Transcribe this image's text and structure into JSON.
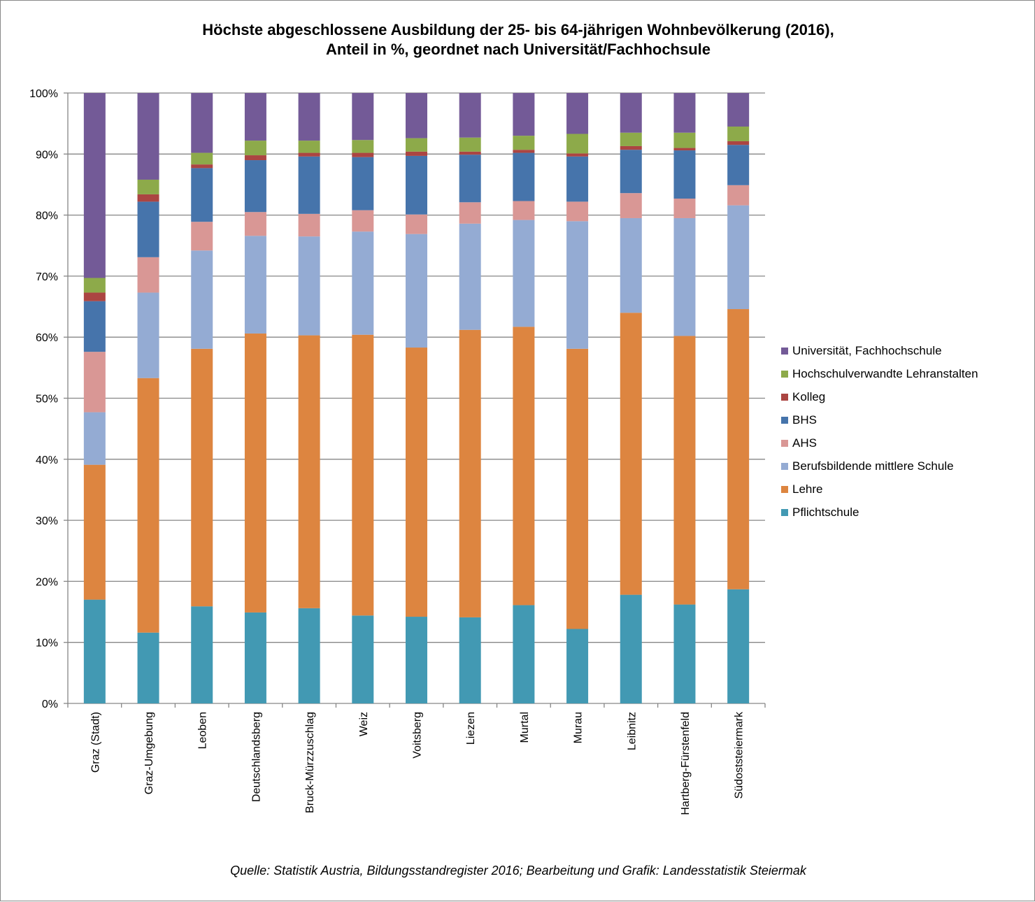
{
  "chart_data": {
    "type": "bar",
    "stacked": true,
    "title_lines": [
      "Höchste abgeschlossene Ausbildung der 25- bis 64-jährigen Wohnbevölkerung (2016),",
      "Anteil in %,  geordnet nach Universität/Fachhochsule"
    ],
    "categories": [
      "Graz (Stadt)",
      "Graz-Umgebung",
      "Leoben",
      "Deutschlandsberg",
      "Bruck-Mürzzuschlag",
      "Weiz",
      "Voitsberg",
      "Liezen",
      "Murtal",
      "Murau",
      "Leibnitz",
      "Hartberg-Fürstenfeld",
      "Südoststeiermark"
    ],
    "ylim": [
      0,
      100
    ],
    "yticks": [
      0,
      10,
      20,
      30,
      40,
      50,
      60,
      70,
      80,
      90,
      100
    ],
    "ytick_labels": [
      "0%",
      "10%",
      "20%",
      "30%",
      "40%",
      "50%",
      "60%",
      "70%",
      "80%",
      "90%",
      "100%"
    ],
    "grid": true,
    "legend_position": "right",
    "series": [
      {
        "name": "Pflichtschule",
        "color": "#4299b3",
        "values": [
          17.0,
          11.6,
          15.9,
          14.9,
          15.6,
          14.4,
          14.2,
          14.1,
          16.1,
          12.2,
          17.8,
          16.2,
          18.7
        ]
      },
      {
        "name": "Lehre",
        "color": "#dd8540",
        "values": [
          22.1,
          41.7,
          42.2,
          45.7,
          44.7,
          46.0,
          44.1,
          47.1,
          45.6,
          45.9,
          46.2,
          44.0,
          45.9
        ]
      },
      {
        "name": "Berufsbildende mittlere Schule",
        "color": "#94abd3",
        "values": [
          8.6,
          14.0,
          16.1,
          16.0,
          16.2,
          16.9,
          18.6,
          17.4,
          17.5,
          20.9,
          15.5,
          19.3,
          17.0
        ]
      },
      {
        "name": "AHS",
        "color": "#d99795",
        "values": [
          9.9,
          5.8,
          4.7,
          3.9,
          3.7,
          3.5,
          3.2,
          3.5,
          3.1,
          3.2,
          4.1,
          3.2,
          3.3
        ]
      },
      {
        "name": "BHS",
        "color": "#4674ab",
        "values": [
          8.3,
          9.1,
          8.8,
          8.5,
          9.4,
          8.7,
          9.6,
          7.8,
          7.9,
          7.4,
          7.1,
          7.9,
          6.6
        ]
      },
      {
        "name": "Kolleg",
        "color": "#ab4542",
        "values": [
          1.4,
          1.2,
          0.6,
          0.8,
          0.6,
          0.7,
          0.7,
          0.5,
          0.5,
          0.5,
          0.6,
          0.4,
          0.6
        ]
      },
      {
        "name": "Hochschulverwandte Lehranstalten",
        "color": "#8daa4a",
        "values": [
          2.4,
          2.4,
          1.9,
          2.4,
          2.0,
          2.1,
          2.2,
          2.3,
          2.3,
          3.2,
          2.2,
          2.5,
          2.4
        ]
      },
      {
        "name": "Universität, Fachhochschule",
        "color": "#735a97",
        "values": [
          30.3,
          14.2,
          9.8,
          7.8,
          7.8,
          7.7,
          7.4,
          7.3,
          7.0,
          6.7,
          6.5,
          6.5,
          5.5
        ]
      }
    ],
    "source": "Quelle: Statistik Austria,  Bildungsstandregister 2016; Bearbeitung und Grafik: Landesstatistik Steiermak"
  }
}
